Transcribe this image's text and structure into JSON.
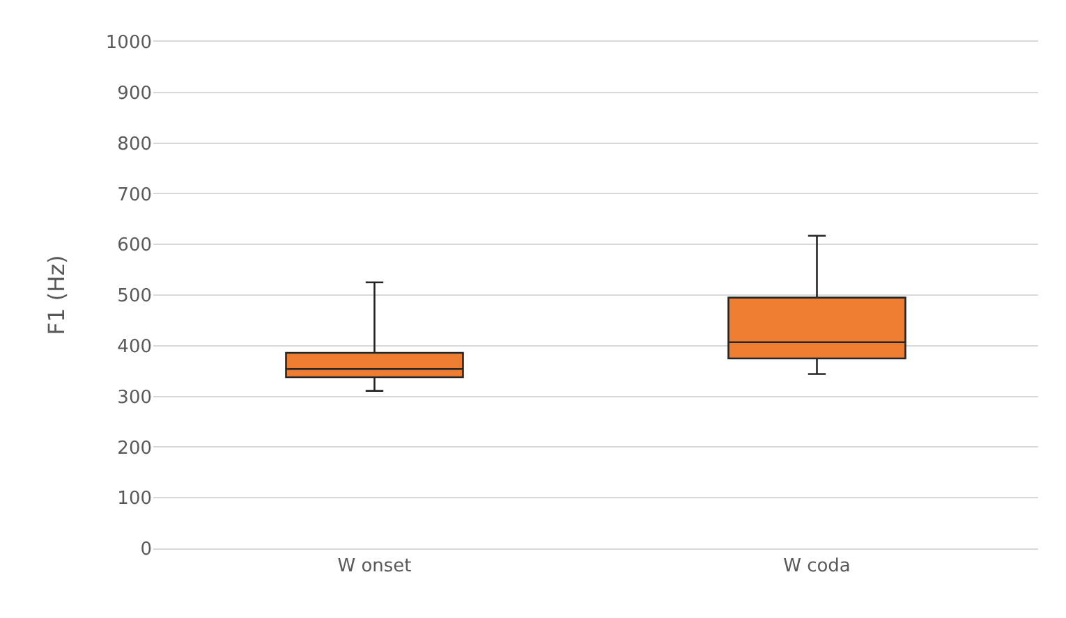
{
  "chart_data": {
    "type": "box",
    "ylabel": "F1 (Hz)",
    "categories": [
      "W onset",
      "W coda"
    ],
    "boxes": [
      {
        "low": 311,
        "q1": 338,
        "median": 354,
        "q3": 386,
        "high": 525
      },
      {
        "low": 344,
        "q1": 375,
        "median": 407,
        "q3": 495,
        "high": 617
      }
    ],
    "color": "#ed7d31",
    "ylim": [
      0,
      1000
    ],
    "yticks": [
      0,
      100,
      200,
      300,
      400,
      500,
      600,
      700,
      800,
      900,
      1000
    ],
    "grid": "y"
  }
}
